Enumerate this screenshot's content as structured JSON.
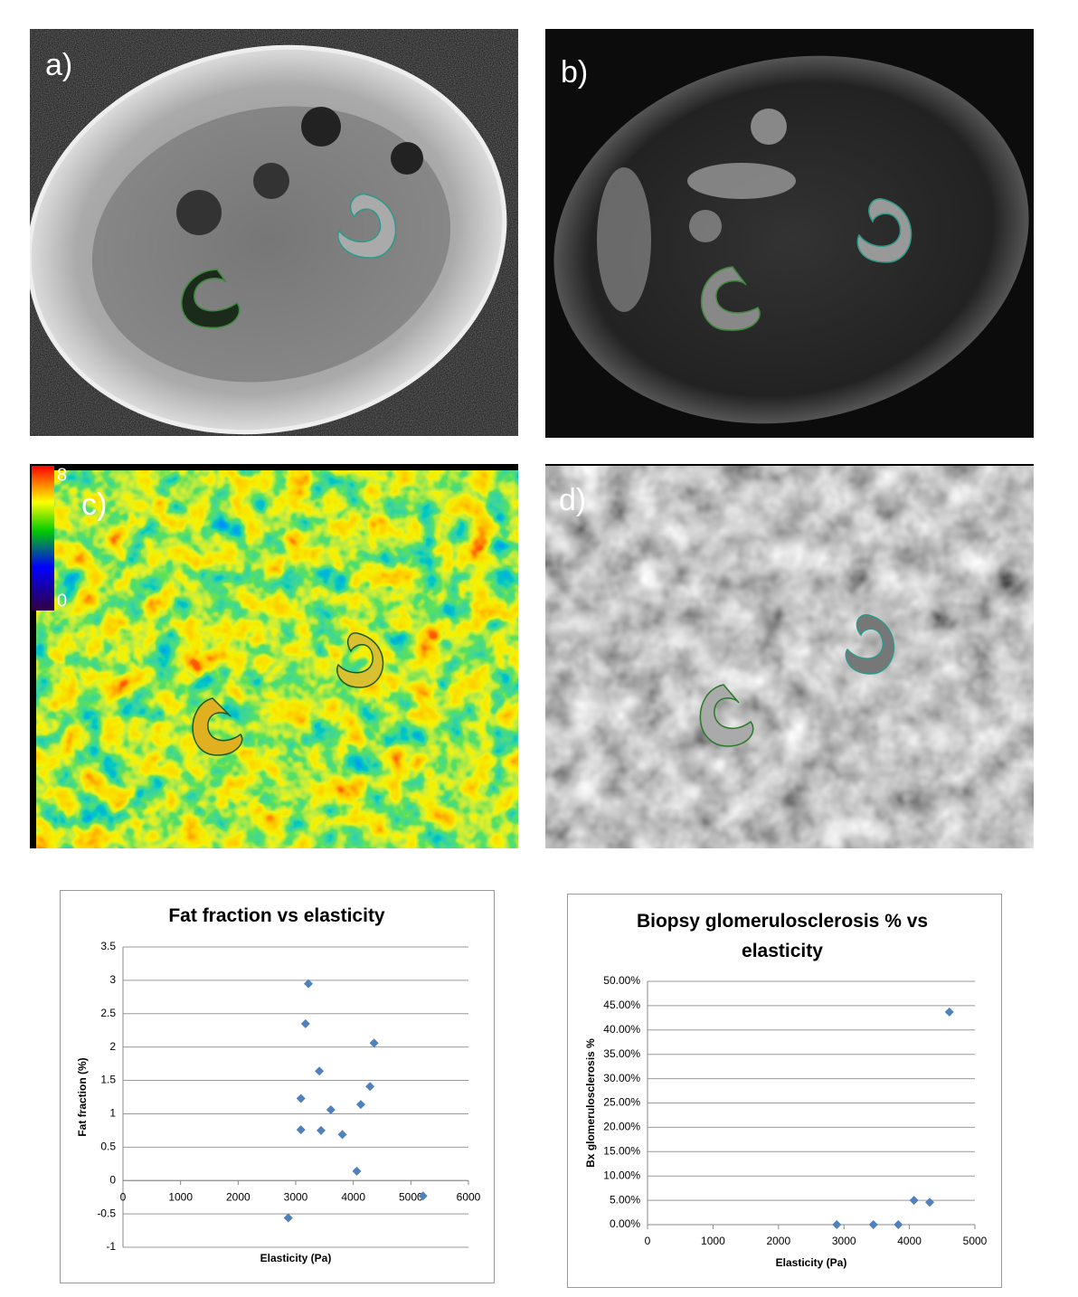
{
  "panels": [
    {
      "label": "a)"
    },
    {
      "label": "b)"
    },
    {
      "label": "c)",
      "colorbar": {
        "max": "8",
        "min": "0"
      }
    },
    {
      "label": "d)"
    }
  ],
  "chart_data": [
    {
      "type": "scatter",
      "title": "Fat fraction vs elasticity",
      "xlabel": "Elasticity (Pa)",
      "ylabel": "Fat fraction (%)",
      "color": "#4f81bd",
      "grid": true,
      "xlim": [
        0,
        6000
      ],
      "xticks": [
        0,
        1000,
        2000,
        3000,
        4000,
        5000,
        6000
      ],
      "ylim": [
        -1,
        3.5
      ],
      "yticks": [
        -1,
        -0.5,
        0,
        0.5,
        1,
        1.5,
        2,
        2.5,
        3,
        3.5
      ],
      "x": [
        3220,
        3170,
        4360,
        3410,
        4290,
        3090,
        3610,
        4130,
        3090,
        3440,
        3810,
        4060,
        5210,
        2870
      ],
      "values": [
        2.95,
        2.35,
        2.06,
        1.64,
        1.41,
        1.23,
        1.06,
        1.14,
        0.76,
        0.75,
        0.69,
        0.14,
        -0.23,
        -0.56
      ]
    },
    {
      "type": "scatter",
      "title": "Biopsy glomerulosclerosis % vs elasticity",
      "xlabel": "Elasticity (Pa)",
      "ylabel": "Bx glomerulosclerosis %",
      "color": "#4f81bd",
      "grid": true,
      "xlim": [
        0,
        5000
      ],
      "xticks": [
        0,
        1000,
        2000,
        3000,
        4000,
        5000
      ],
      "ylim": [
        0,
        50
      ],
      "yticks": [
        {
          "value": 0,
          "label": "0.00%"
        },
        {
          "value": 5,
          "label": "5.00%"
        },
        {
          "value": 10,
          "label": "10.00%"
        },
        {
          "value": 15,
          "label": "15.00%"
        },
        {
          "value": 20,
          "label": "20.00%"
        },
        {
          "value": 25,
          "label": "25.00%"
        },
        {
          "value": 30,
          "label": "30.00%"
        },
        {
          "value": 35,
          "label": "35.00%"
        },
        {
          "value": 40,
          "label": "40.00%"
        },
        {
          "value": 45,
          "label": "45.00%"
        },
        {
          "value": 50,
          "label": "50.00%"
        }
      ],
      "x": [
        2890,
        3450,
        3830,
        4070,
        4310,
        4610
      ],
      "values": [
        0,
        0,
        0,
        5.0,
        4.6,
        43.7
      ]
    }
  ]
}
